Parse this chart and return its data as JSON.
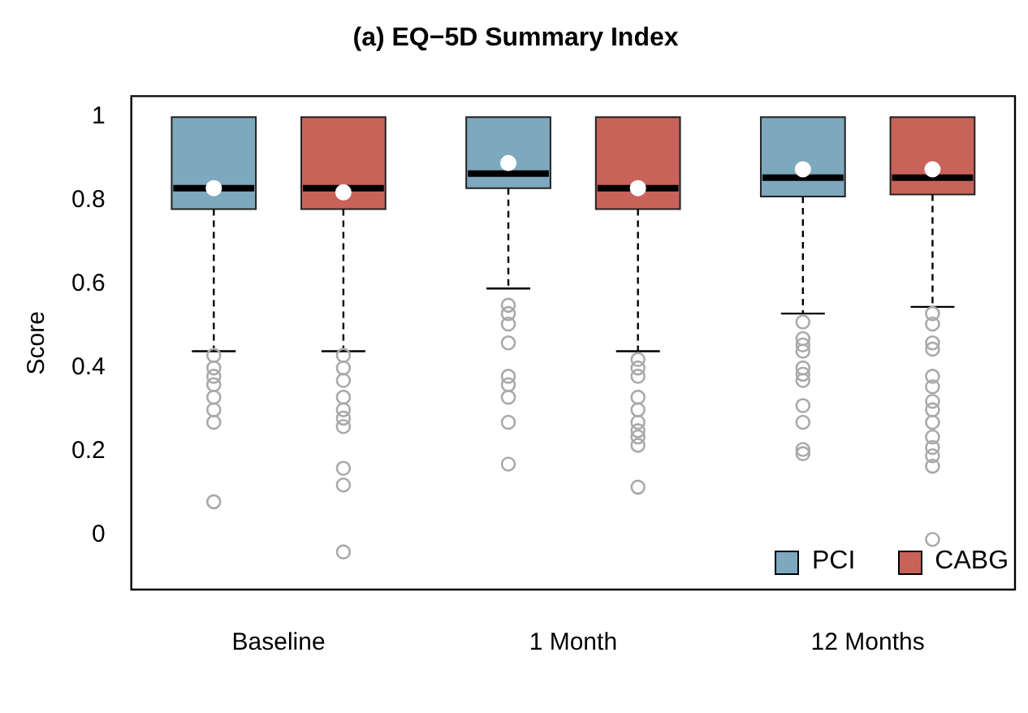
{
  "chart_data": {
    "type": "box",
    "title": "(a) EQ−5D Summary Index",
    "ylabel": "Score",
    "categories": [
      "Baseline",
      "1 Month",
      "12 Months"
    ],
    "ylim": [
      -0.13,
      1.05
    ],
    "yticks": [
      0,
      0.2,
      0.4,
      0.6,
      0.8,
      1
    ],
    "grid": false,
    "legend": "bottom right",
    "series": [
      {
        "name": "PCI",
        "color": "#7ea8bd",
        "boxes": [
          {
            "low": 0.44,
            "q1": 0.78,
            "median": 0.83,
            "q3": 1,
            "high": 1,
            "mean": 0.83,
            "outliers": [
              0.43,
              0.4,
              0.38,
              0.36,
              0.33,
              0.3,
              0.27,
              0.08
            ]
          },
          {
            "low": 0.59,
            "q1": 0.83,
            "median": 0.865,
            "q3": 1,
            "high": 1,
            "mean": 0.89,
            "outliers": [
              0.55,
              0.53,
              0.505,
              0.46,
              0.38,
              0.36,
              0.33,
              0.27,
              0.17
            ]
          },
          {
            "low": 0.53,
            "q1": 0.81,
            "median": 0.855,
            "q3": 1,
            "high": 1,
            "mean": 0.875,
            "outliers": [
              0.51,
              0.47,
              0.455,
              0.44,
              0.4,
              0.385,
              0.37,
              0.31,
              0.27,
              0.205,
              0.195
            ]
          }
        ]
      },
      {
        "name": "CABG",
        "color": "#c8635a",
        "boxes": [
          {
            "low": 0.44,
            "q1": 0.78,
            "median": 0.83,
            "q3": 1,
            "high": 1,
            "mean": 0.82,
            "outliers": [
              0.43,
              0.4,
              0.37,
              0.33,
              0.3,
              0.28,
              0.26,
              0.16,
              0.12,
              -0.04
            ]
          },
          {
            "low": 0.44,
            "q1": 0.78,
            "median": 0.83,
            "q3": 1,
            "high": 1,
            "mean": 0.83,
            "outliers": [
              0.42,
              0.4,
              0.38,
              0.33,
              0.3,
              0.27,
              0.25,
              0.235,
              0.215,
              0.115
            ]
          },
          {
            "low": 0.546,
            "q1": 0.815,
            "median": 0.855,
            "q3": 1,
            "high": 1,
            "mean": 0.875,
            "outliers": [
              0.53,
              0.505,
              0.46,
              0.445,
              0.38,
              0.355,
              0.32,
              0.3,
              0.27,
              0.235,
              0.21,
              0.19,
              0.165,
              -0.01
            ]
          }
        ]
      }
    ]
  }
}
